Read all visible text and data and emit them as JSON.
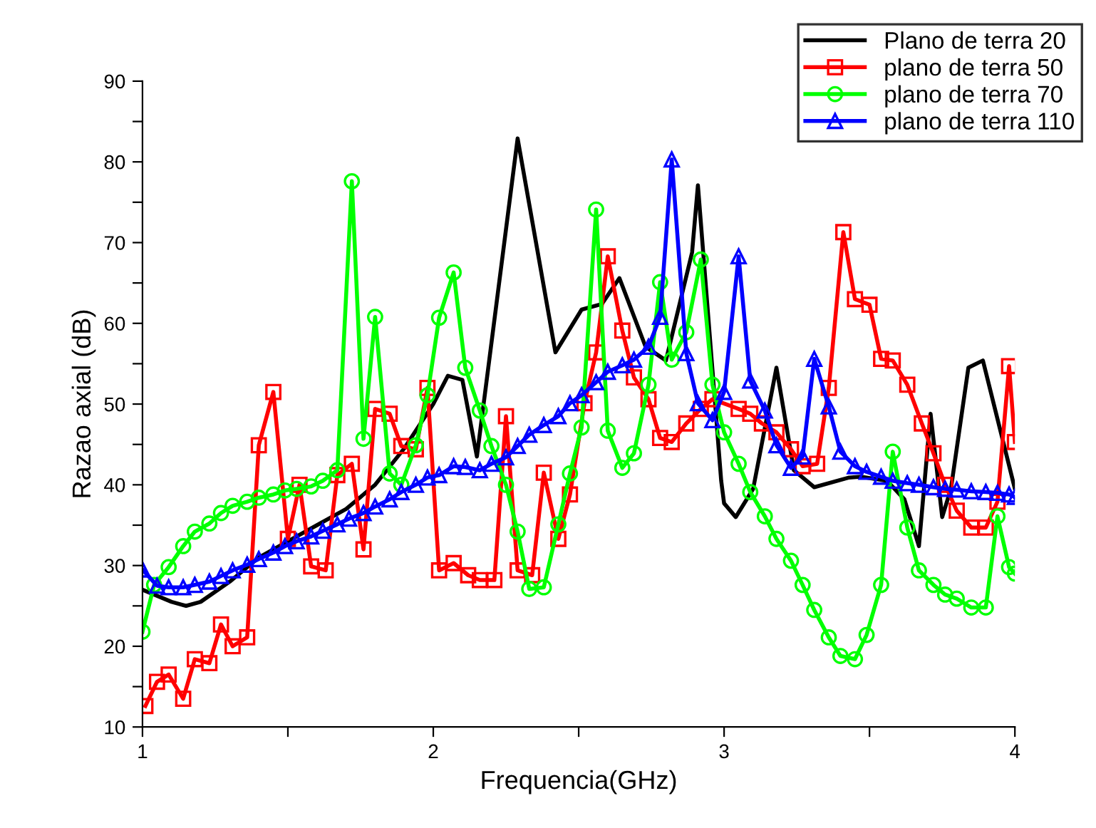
{
  "chart_data": {
    "type": "line",
    "xlabel": "Frequencia(GHz)",
    "ylabel": "Razao axial (dB)",
    "xlim": [
      1,
      4
    ],
    "ylim": [
      10,
      90
    ],
    "xticks": [
      1,
      {
        "value": 1.5,
        "label": null
      },
      2,
      {
        "value": 2.5,
        "label": null
      },
      3,
      {
        "value": 3.5,
        "label": null
      },
      4
    ],
    "yticks": [
      10,
      {
        "value": 15,
        "label": null
      },
      20,
      {
        "value": 25,
        "label": null
      },
      30,
      {
        "value": 35,
        "label": null
      },
      40,
      {
        "value": 45,
        "label": null
      },
      50,
      {
        "value": 55,
        "label": null
      },
      60,
      {
        "value": 65,
        "label": null
      },
      70,
      {
        "value": 75,
        "label": null
      },
      80,
      {
        "value": 85,
        "label": null
      },
      90
    ],
    "grid": false,
    "legend": "top right",
    "line_style": "solid",
    "series": [
      {
        "name": "Plano de terra 20",
        "color": "#000000",
        "marker": "none",
        "x": [
          1.0,
          1.1,
          1.15,
          1.2,
          1.3,
          1.4,
          1.5,
          1.6,
          1.7,
          1.8,
          1.9,
          2.0,
          2.05,
          2.1,
          2.15,
          2.29,
          2.42,
          2.51,
          2.58,
          2.64,
          2.73,
          2.8,
          2.89,
          2.91,
          2.99,
          3.0,
          3.04,
          3.1,
          3.18,
          3.24,
          3.31,
          3.43,
          3.47,
          3.56,
          3.62,
          3.67,
          3.71,
          3.75,
          3.78,
          3.84,
          3.89,
          4.0
        ],
        "values": [
          27,
          25.5,
          25,
          25.5,
          28,
          31,
          33,
          35,
          37,
          40,
          44.5,
          50,
          53.5,
          53,
          43.5,
          82.9,
          56.4,
          61.7,
          62.4,
          65.6,
          57.1,
          55.4,
          68.8,
          77.1,
          40.5,
          37.7,
          36,
          39.5,
          54.5,
          41.8,
          39.7,
          40.9,
          41,
          40.5,
          38.2,
          32.4,
          48.8,
          36,
          39.5,
          54.5,
          55.4,
          39.5
        ]
      },
      {
        "name": "plano de terra 50",
        "color": "#ff0000",
        "marker": "square",
        "x": [
          1.01,
          1.05,
          1.09,
          1.14,
          1.18,
          1.23,
          1.27,
          1.31,
          1.36,
          1.4,
          1.45,
          1.5,
          1.54,
          1.58,
          1.63,
          1.67,
          1.72,
          1.76,
          1.8,
          1.85,
          1.89,
          1.94,
          1.98,
          2.02,
          2.07,
          2.12,
          2.16,
          2.21,
          2.25,
          2.29,
          2.34,
          2.38,
          2.43,
          2.47,
          2.52,
          2.56,
          2.6,
          2.65,
          2.69,
          2.74,
          2.78,
          2.82,
          2.87,
          2.92,
          2.96,
          3.05,
          3.09,
          3.13,
          3.18,
          3.23,
          3.27,
          3.32,
          3.36,
          3.41,
          3.45,
          3.5,
          3.54,
          3.58,
          3.63,
          3.68,
          3.72,
          3.76,
          3.8,
          3.85,
          3.9,
          3.94,
          3.98,
          4.0
        ],
        "values": [
          12.6,
          15.6,
          16.5,
          13.5,
          18.4,
          17.9,
          22.7,
          20.0,
          21.1,
          44.9,
          51.5,
          33.3,
          40.0,
          29.9,
          29.4,
          41.2,
          42.6,
          32.0,
          49.4,
          48.8,
          44.8,
          44.4,
          52.0,
          29.4,
          30.3,
          28.8,
          28.2,
          28.2,
          48.5,
          29.4,
          28.8,
          41.5,
          33.3,
          38.8,
          50.1,
          56.4,
          68.3,
          59.1,
          53.3,
          50.6,
          45.8,
          45.3,
          47.6,
          49.4,
          50.6,
          49.4,
          48.8,
          47.6,
          46.5,
          44.4,
          42.3,
          42.6,
          52.0,
          71.3,
          63.0,
          62.3,
          55.6,
          55.4,
          52.4,
          47.6,
          43.9,
          40.0,
          36.8,
          34.7,
          34.7,
          37.9,
          54.7,
          45.3
        ]
      },
      {
        "name": "plano de terra 70",
        "color": "#00ff00",
        "marker": "circle",
        "x": [
          1.0,
          1.04,
          1.09,
          1.14,
          1.18,
          1.23,
          1.27,
          1.31,
          1.36,
          1.4,
          1.45,
          1.49,
          1.53,
          1.58,
          1.62,
          1.67,
          1.72,
          1.76,
          1.8,
          1.85,
          1.89,
          1.94,
          1.98,
          2.02,
          2.07,
          2.11,
          2.16,
          2.2,
          2.25,
          2.29,
          2.33,
          2.38,
          2.43,
          2.47,
          2.51,
          2.56,
          2.6,
          2.65,
          2.69,
          2.74,
          2.78,
          2.82,
          2.87,
          2.92,
          2.96,
          3.0,
          3.05,
          3.09,
          3.14,
          3.18,
          3.23,
          3.27,
          3.31,
          3.36,
          3.4,
          3.45,
          3.49,
          3.54,
          3.58,
          3.63,
          3.67,
          3.72,
          3.76,
          3.8,
          3.85,
          3.9,
          3.94,
          3.98,
          4.0
        ],
        "values": [
          21.8,
          27.6,
          29.8,
          32.4,
          34.2,
          35.2,
          36.5,
          37.4,
          37.9,
          38.4,
          38.8,
          39.3,
          39.5,
          39.8,
          40.5,
          41.8,
          77.6,
          45.7,
          60.8,
          41.4,
          40.0,
          44.9,
          51.1,
          60.7,
          66.3,
          54.5,
          49.2,
          44.8,
          40.0,
          34.2,
          27.1,
          27.3,
          35.1,
          41.4,
          47.1,
          74.1,
          46.7,
          42.1,
          43.9,
          52.4,
          65.1,
          55.5,
          58.9,
          67.9,
          52.4,
          46.5,
          42.6,
          39.1,
          36.1,
          33.3,
          30.6,
          27.6,
          24.5,
          21.1,
          18.8,
          18.4,
          21.4,
          27.6,
          44.1,
          34.7,
          29.4,
          27.6,
          26.4,
          25.9,
          24.8,
          24.8,
          36.1,
          29.8,
          29
        ]
      },
      {
        "name": "plano de terra 110",
        "color": "#0000ff",
        "marker": "triangle",
        "x": [
          1.0,
          1.05,
          1.09,
          1.14,
          1.18,
          1.23,
          1.27,
          1.31,
          1.36,
          1.4,
          1.45,
          1.49,
          1.53,
          1.58,
          1.62,
          1.67,
          1.71,
          1.76,
          1.8,
          1.85,
          1.89,
          1.94,
          1.98,
          2.02,
          2.07,
          2.11,
          2.16,
          2.2,
          2.25,
          2.29,
          2.33,
          2.38,
          2.43,
          2.47,
          2.51,
          2.56,
          2.6,
          2.65,
          2.69,
          2.74,
          2.78,
          2.82,
          2.87,
          2.91,
          2.96,
          3.0,
          3.05,
          3.09,
          3.14,
          3.18,
          3.23,
          3.27,
          3.31,
          3.36,
          3.4,
          3.45,
          3.49,
          3.54,
          3.58,
          3.63,
          3.67,
          3.72,
          3.76,
          3.8,
          3.85,
          3.9,
          3.94,
          3.98,
          4.0
        ],
        "values": [
          29.5,
          27.5,
          27.3,
          27.3,
          27.6,
          28.0,
          28.7,
          29.4,
          30.1,
          30.8,
          31.6,
          32.4,
          33.0,
          33.6,
          34.3,
          35.1,
          35.8,
          36.5,
          37.3,
          38.2,
          39.1,
          40.0,
          40.9,
          41.2,
          42.3,
          42.2,
          41.8,
          42.6,
          43.4,
          44.8,
          46.2,
          47.4,
          48.5,
          50.1,
          51.1,
          52.7,
          54.0,
          54.8,
          55.5,
          57.1,
          60.8,
          80.3,
          56.3,
          50.1,
          48.0,
          51.5,
          68.3,
          52.9,
          49.2,
          44.9,
          42.1,
          43.5,
          55.6,
          49.7,
          44.1,
          42.3,
          41.6,
          41.0,
          40.5,
          40.2,
          40.0,
          39.7,
          39.5,
          39.4,
          39.2,
          39.1,
          39.0,
          38.8,
          38.5
        ]
      }
    ]
  }
}
